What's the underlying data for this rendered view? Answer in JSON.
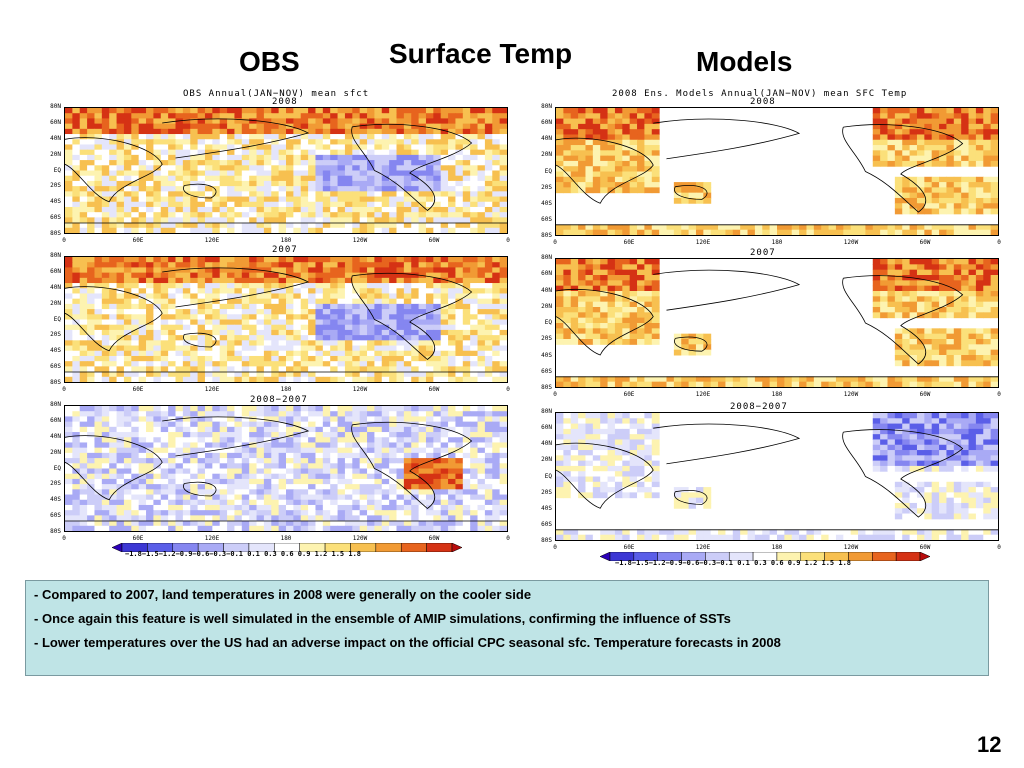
{
  "slide": {
    "title": "Surface Temp",
    "obs_heading": "OBS",
    "models_heading": "Models",
    "page_number": "12"
  },
  "panels": {
    "obs_header": "OBS Annual(JAN−NOV) mean sfct",
    "models_header": "2008 Ens. Models Annual(JAN−NOV) mean SFC Temp",
    "year_2008": "2008",
    "year_2007": "2007",
    "diff": "2008−2007"
  },
  "lat_labels": [
    "80N",
    "60N",
    "40N",
    "20N",
    "EQ",
    "20S",
    "40S",
    "60S",
    "80S"
  ],
  "lon_labels": [
    "0",
    "60E",
    "120E",
    "180",
    "120W",
    "60W",
    "0"
  ],
  "colorbar": {
    "labels": "−1.8−1.5−1.2−0.9−0.6−0.3−0.1 0.1  0.3  0.6  0.9  1.2  1.5  1.8",
    "colors": [
      "#2b00b8",
      "#3c37d4",
      "#5a5ee8",
      "#8586f0",
      "#a9aaf5",
      "#cccdf8",
      "#e4e5fb",
      "#ffffff",
      "#fdf3b0",
      "#fbe07a",
      "#f7c050",
      "#f19a34",
      "#e7641e",
      "#d53214",
      "#b80c0c"
    ]
  },
  "notes": [
    "Compared to 2007, land temperatures in 2008 were generally on the cooler side",
    "Once again this feature is well simulated in the ensemble of AMIP simulations, confirming the influence of SSTs",
    "Lower temperatures over the US had an adverse impact on the official CPC seasonal sfc. Temperature forecasts in 2008"
  ],
  "note_bullet": "- "
}
